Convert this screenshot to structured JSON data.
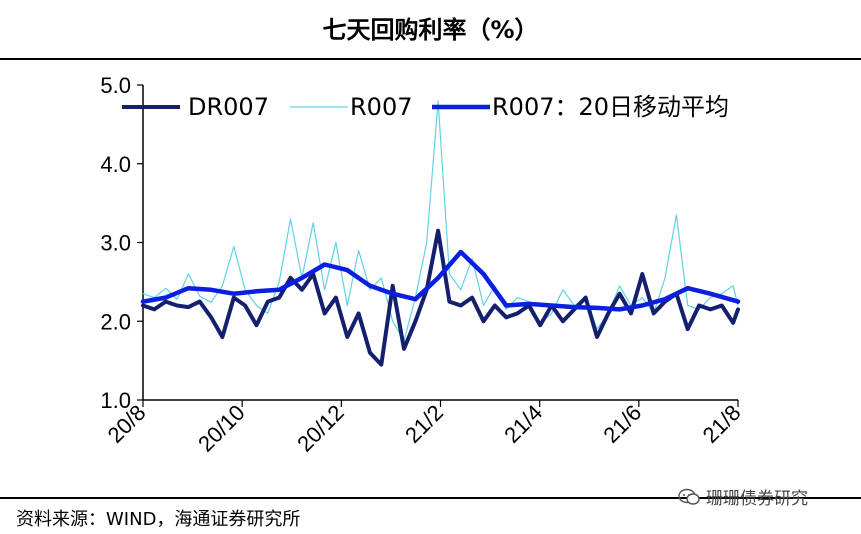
{
  "header": {
    "title": "七天回购利率（%）"
  },
  "footer": {
    "source": "资料来源：WIND，海通证券研究所"
  },
  "watermark": {
    "text": "珊珊债券研究",
    "icon": "wechat-icon"
  },
  "chart_data": {
    "type": "line",
    "title": "七天回购利率（%）",
    "xlabel": "",
    "ylabel": "",
    "ylim": [
      1.0,
      5.0
    ],
    "yticks": [
      "1.0",
      "2.0",
      "3.0",
      "4.0",
      "5.0"
    ],
    "xticks": [
      "20/8",
      "20/10",
      "20/12",
      "21/2",
      "21/4",
      "21/6",
      "21/8"
    ],
    "xlim": [
      "2020-08-01",
      "2021-08-03"
    ],
    "legend_position": "top",
    "grid": false,
    "series": [
      {
        "name": "R007",
        "color": "#5fd3e6",
        "points": [
          [
            "2020-08-01",
            2.35
          ],
          [
            "2020-08-08",
            2.3
          ],
          [
            "2020-08-15",
            2.42
          ],
          [
            "2020-08-22",
            2.28
          ],
          [
            "2020-08-29",
            2.6
          ],
          [
            "2020-09-05",
            2.32
          ],
          [
            "2020-09-12",
            2.24
          ],
          [
            "2020-09-19",
            2.45
          ],
          [
            "2020-09-26",
            2.95
          ],
          [
            "2020-10-03",
            2.4
          ],
          [
            "2020-10-10",
            2.2
          ],
          [
            "2020-10-17",
            2.1
          ],
          [
            "2020-10-24",
            2.5
          ],
          [
            "2020-10-31",
            3.3
          ],
          [
            "2020-11-07",
            2.55
          ],
          [
            "2020-11-14",
            3.25
          ],
          [
            "2020-11-21",
            2.4
          ],
          [
            "2020-11-28",
            3.0
          ],
          [
            "2020-12-05",
            2.2
          ],
          [
            "2020-12-12",
            2.9
          ],
          [
            "2020-12-19",
            2.4
          ],
          [
            "2020-12-26",
            2.55
          ],
          [
            "2021-01-02",
            2.0
          ],
          [
            "2021-01-09",
            1.75
          ],
          [
            "2021-01-16",
            2.3
          ],
          [
            "2021-01-23",
            3.0
          ],
          [
            "2021-01-30",
            4.8
          ],
          [
            "2021-02-06",
            2.6
          ],
          [
            "2021-02-13",
            2.4
          ],
          [
            "2021-02-20",
            2.8
          ],
          [
            "2021-02-27",
            2.2
          ],
          [
            "2021-03-06",
            2.45
          ],
          [
            "2021-03-13",
            2.15
          ],
          [
            "2021-03-20",
            2.3
          ],
          [
            "2021-03-27",
            2.25
          ],
          [
            "2021-04-03",
            1.98
          ],
          [
            "2021-04-10",
            2.1
          ],
          [
            "2021-04-17",
            2.4
          ],
          [
            "2021-04-24",
            2.2
          ],
          [
            "2021-05-01",
            2.3
          ],
          [
            "2021-05-08",
            1.9
          ],
          [
            "2021-05-15",
            2.1
          ],
          [
            "2021-05-22",
            2.45
          ],
          [
            "2021-05-29",
            2.2
          ],
          [
            "2021-06-05",
            2.3
          ],
          [
            "2021-06-12",
            2.1
          ],
          [
            "2021-06-19",
            2.55
          ],
          [
            "2021-06-26",
            3.35
          ],
          [
            "2021-07-03",
            2.2
          ],
          [
            "2021-07-10",
            2.15
          ],
          [
            "2021-07-17",
            2.3
          ],
          [
            "2021-07-24",
            2.35
          ],
          [
            "2021-07-31",
            2.45
          ],
          [
            "2021-08-03",
            2.2
          ]
        ]
      },
      {
        "name": "DR007",
        "color": "#14206e",
        "points": [
          [
            "2020-08-01",
            2.2
          ],
          [
            "2020-08-08",
            2.15
          ],
          [
            "2020-08-15",
            2.25
          ],
          [
            "2020-08-22",
            2.2
          ],
          [
            "2020-08-29",
            2.18
          ],
          [
            "2020-09-05",
            2.25
          ],
          [
            "2020-09-12",
            2.05
          ],
          [
            "2020-09-19",
            1.8
          ],
          [
            "2020-09-26",
            2.3
          ],
          [
            "2020-10-03",
            2.2
          ],
          [
            "2020-10-10",
            1.95
          ],
          [
            "2020-10-17",
            2.25
          ],
          [
            "2020-10-24",
            2.3
          ],
          [
            "2020-10-31",
            2.55
          ],
          [
            "2020-11-07",
            2.4
          ],
          [
            "2020-11-14",
            2.6
          ],
          [
            "2020-11-21",
            2.1
          ],
          [
            "2020-11-28",
            2.3
          ],
          [
            "2020-12-05",
            1.8
          ],
          [
            "2020-12-12",
            2.1
          ],
          [
            "2020-12-19",
            1.6
          ],
          [
            "2020-12-26",
            1.45
          ],
          [
            "2021-01-02",
            2.45
          ],
          [
            "2021-01-09",
            1.65
          ],
          [
            "2021-01-16",
            2.0
          ],
          [
            "2021-01-23",
            2.4
          ],
          [
            "2021-01-30",
            3.15
          ],
          [
            "2021-02-06",
            2.25
          ],
          [
            "2021-02-13",
            2.2
          ],
          [
            "2021-02-20",
            2.3
          ],
          [
            "2021-02-27",
            2.0
          ],
          [
            "2021-03-06",
            2.2
          ],
          [
            "2021-03-13",
            2.05
          ],
          [
            "2021-03-20",
            2.1
          ],
          [
            "2021-03-27",
            2.2
          ],
          [
            "2021-04-03",
            1.95
          ],
          [
            "2021-04-10",
            2.2
          ],
          [
            "2021-04-17",
            2.0
          ],
          [
            "2021-04-24",
            2.15
          ],
          [
            "2021-05-01",
            2.3
          ],
          [
            "2021-05-08",
            1.8
          ],
          [
            "2021-05-15",
            2.1
          ],
          [
            "2021-05-22",
            2.35
          ],
          [
            "2021-05-29",
            2.1
          ],
          [
            "2021-06-05",
            2.6
          ],
          [
            "2021-06-12",
            2.1
          ],
          [
            "2021-06-19",
            2.25
          ],
          [
            "2021-06-26",
            2.35
          ],
          [
            "2021-07-03",
            1.9
          ],
          [
            "2021-07-10",
            2.2
          ],
          [
            "2021-07-17",
            2.15
          ],
          [
            "2021-07-24",
            2.2
          ],
          [
            "2021-07-31",
            1.98
          ],
          [
            "2021-08-03",
            2.15
          ]
        ]
      },
      {
        "name": "R007：20日移动平均",
        "color": "#0b1fe0",
        "points": [
          [
            "2020-08-01",
            2.25
          ],
          [
            "2020-08-15",
            2.3
          ],
          [
            "2020-08-29",
            2.42
          ],
          [
            "2020-09-12",
            2.4
          ],
          [
            "2020-09-26",
            2.35
          ],
          [
            "2020-10-10",
            2.38
          ],
          [
            "2020-10-24",
            2.4
          ],
          [
            "2020-11-07",
            2.55
          ],
          [
            "2020-11-21",
            2.72
          ],
          [
            "2020-12-05",
            2.65
          ],
          [
            "2020-12-19",
            2.45
          ],
          [
            "2021-01-02",
            2.35
          ],
          [
            "2021-01-16",
            2.28
          ],
          [
            "2021-01-30",
            2.55
          ],
          [
            "2021-02-13",
            2.88
          ],
          [
            "2021-02-27",
            2.6
          ],
          [
            "2021-03-13",
            2.2
          ],
          [
            "2021-03-27",
            2.22
          ],
          [
            "2021-04-10",
            2.2
          ],
          [
            "2021-04-24",
            2.18
          ],
          [
            "2021-05-08",
            2.17
          ],
          [
            "2021-05-22",
            2.15
          ],
          [
            "2021-06-05",
            2.2
          ],
          [
            "2021-06-19",
            2.28
          ],
          [
            "2021-07-03",
            2.42
          ],
          [
            "2021-07-17",
            2.35
          ],
          [
            "2021-08-03",
            2.25
          ]
        ]
      }
    ]
  }
}
